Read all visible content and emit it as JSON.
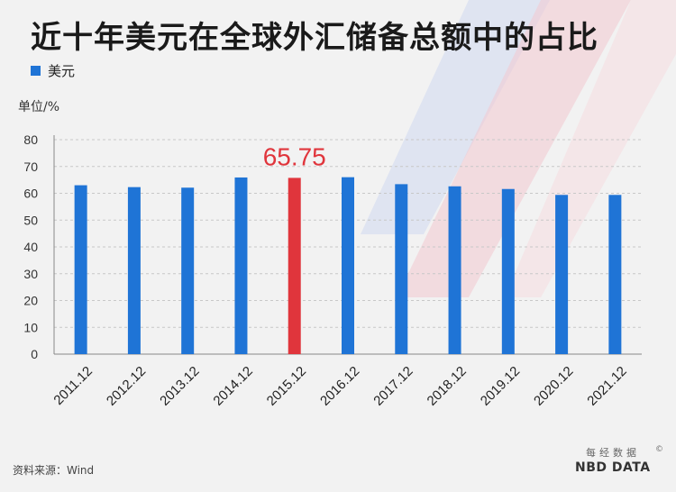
{
  "title": "近十年美元在全球外汇储备总额中的占比",
  "legend": {
    "label": "美元",
    "color": "#1f74d6"
  },
  "unit_label": "单位/%",
  "source": "资料来源：Wind",
  "logo": {
    "cn": "每经数据",
    "en": "NBD DATA",
    "mark": "©"
  },
  "colors": {
    "bar": "#1f74d6",
    "highlight": "#e0353c",
    "axis": "#888888",
    "grid": "#c8c8c8"
  },
  "chart_data": {
    "type": "bar",
    "categories": [
      "2011.12",
      "2012.12",
      "2013.12",
      "2014.12",
      "2015.12",
      "2016.12",
      "2017.12",
      "2018.12",
      "2019.12",
      "2020.12",
      "2021.12"
    ],
    "series": [
      {
        "name": "美元",
        "values": [
          63.0,
          62.3,
          62.1,
          65.9,
          65.75,
          66.0,
          63.4,
          62.6,
          61.6,
          59.4,
          59.4
        ]
      }
    ],
    "highlight_index": 4,
    "highlight_label": "65.75",
    "ylim": [
      0,
      80
    ],
    "yticks": [
      0,
      10,
      20,
      30,
      40,
      50,
      60,
      70,
      80
    ],
    "grid": true,
    "legend_position": "top-left"
  }
}
